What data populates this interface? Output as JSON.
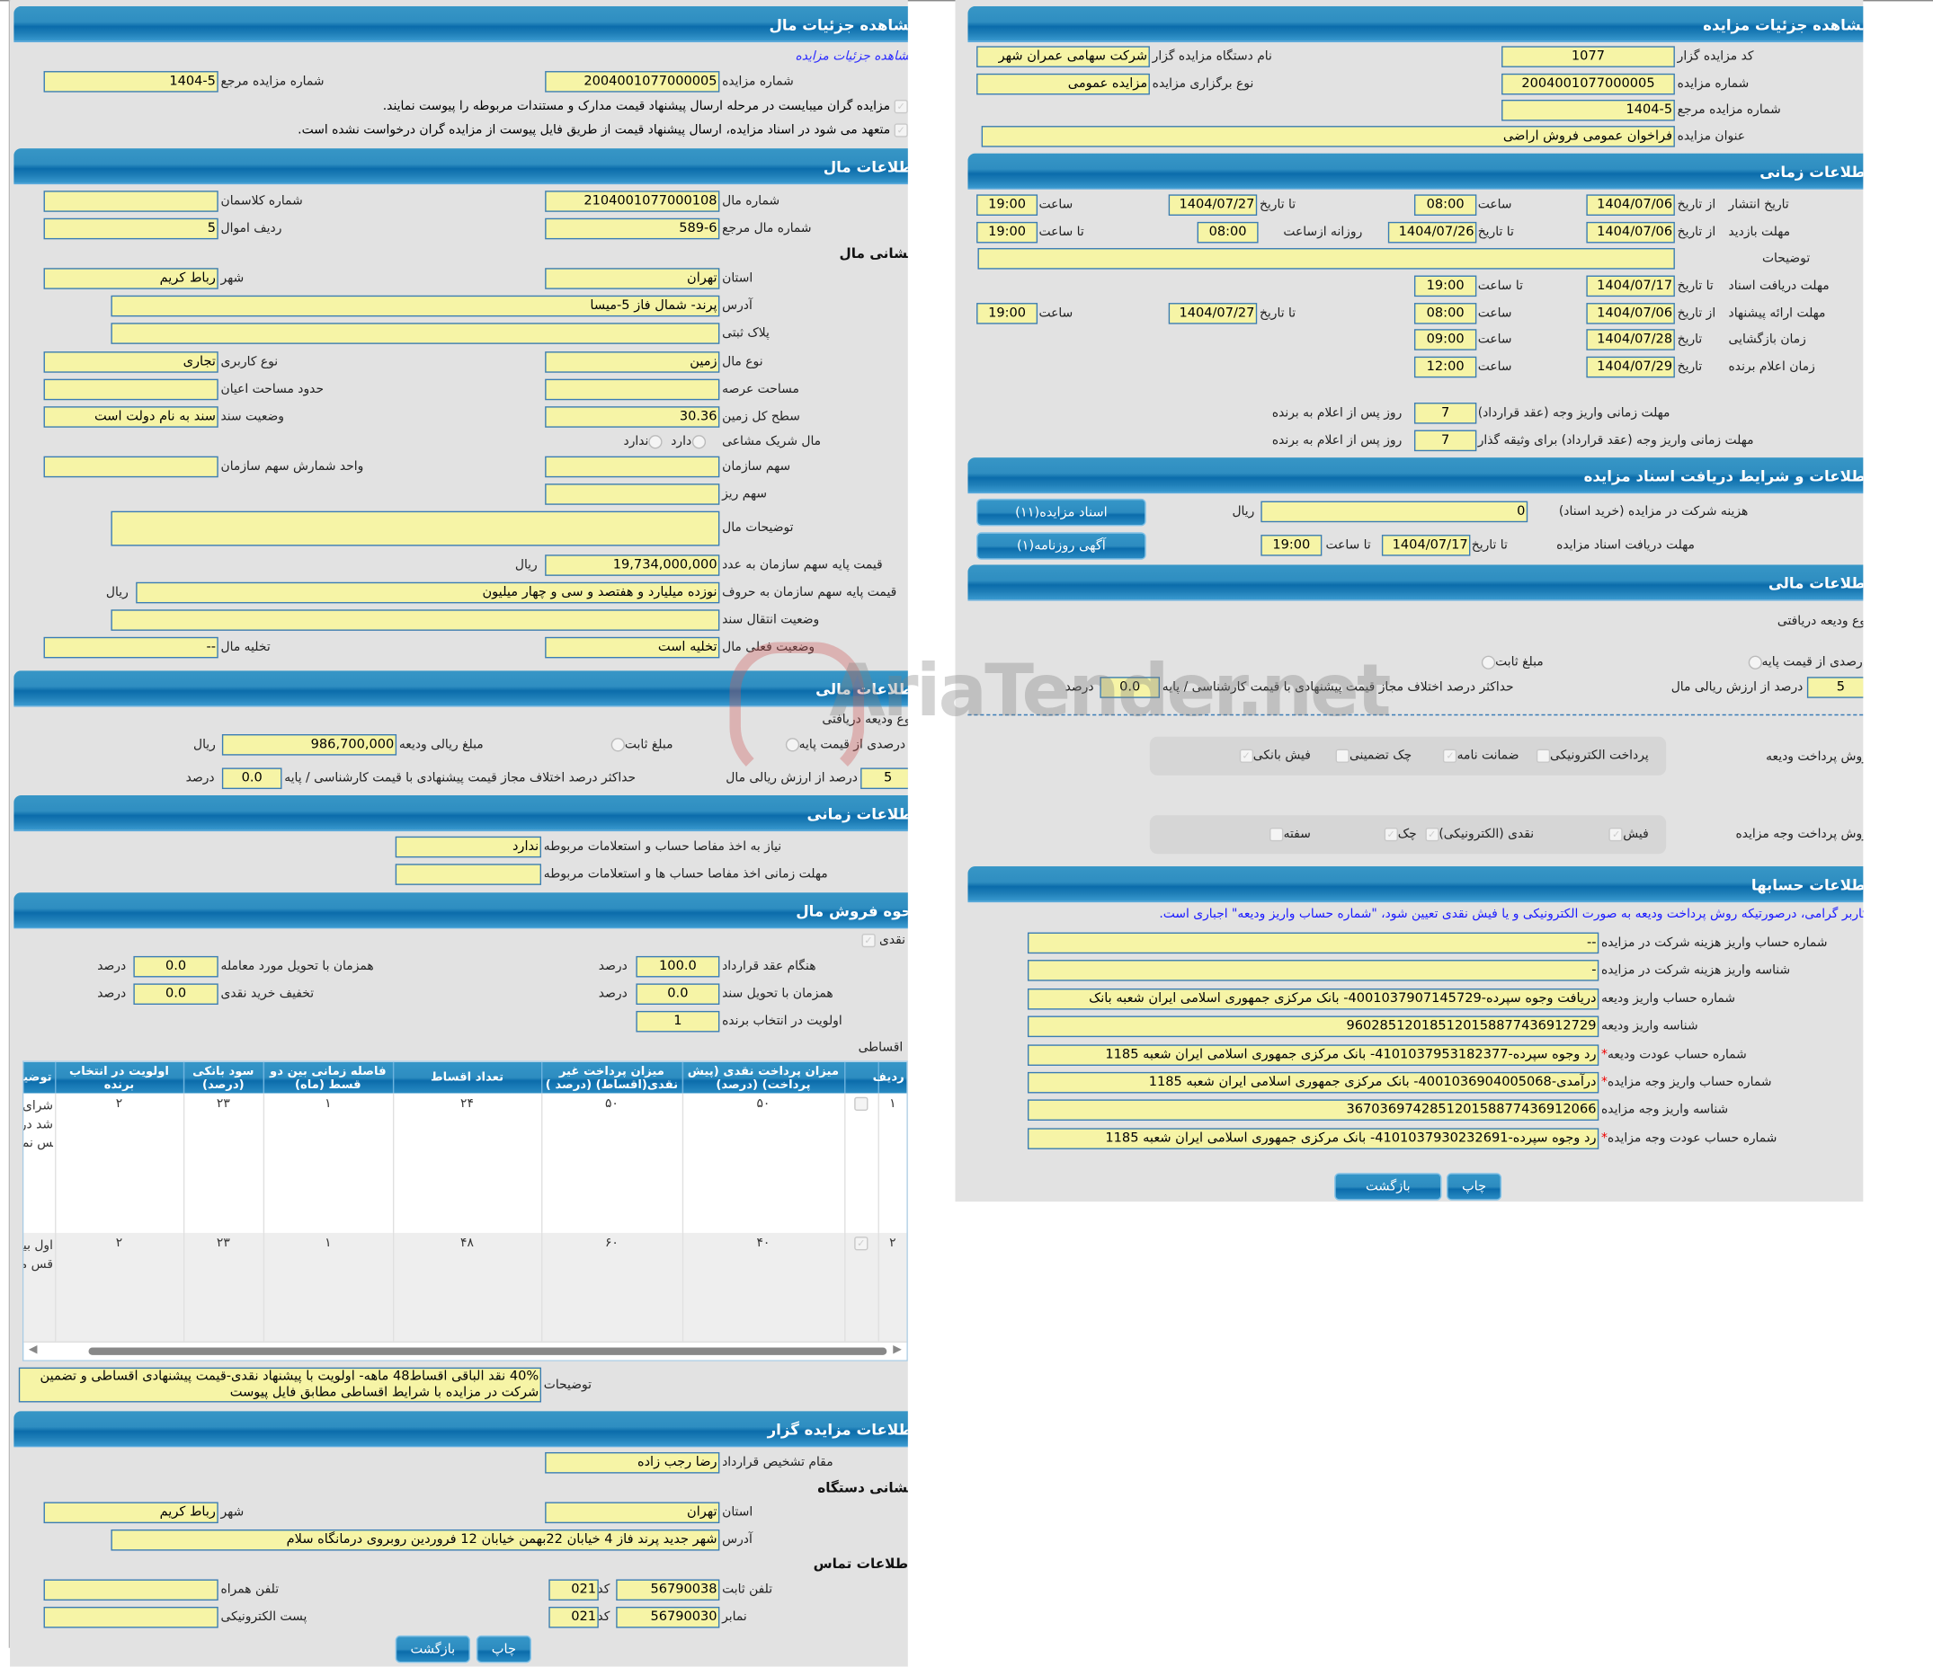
{
  "watermark": "AriaTender.net",
  "left": {
    "title": "مشاهده جزئیات مال",
    "link": "مشاهده جزئیات مزایده",
    "auction_no": {
      "label": "شماره مزایده",
      "value": "2004001077000005"
    },
    "auction_ref": {
      "label": "شماره مزایده مرجع",
      "value": "1404-5"
    },
    "check1": "مزایده گران میبایست در مرحله ارسال پیشنهاد قیمت مدارک و مستندات مربوطه را پیوست نمایند.",
    "check2": "متعهد می شود در اسناد مزایده، ارسال پیشنهاد قیمت از طریق فایل پیوست از مزایده گران درخواست نشده است.",
    "property": {
      "title": "اطلاعات مال",
      "mal_no": {
        "label": "شماره مال",
        "value": "2104001077000108"
      },
      "class_no": {
        "label": "شماره کلاسمان",
        "value": ""
      },
      "mal_ref": {
        "label": "شماره مال مرجع",
        "value": "589-6"
      },
      "row_no": {
        "label": "ردیف اموال",
        "value": "5"
      },
      "address_title": "نشانی مال",
      "province": {
        "label": "استان",
        "value": "تهران"
      },
      "city": {
        "label": "شهر",
        "value": "رباط کریم"
      },
      "address": {
        "label": "آدرس",
        "value": "پرند- شمال فاز 5-میسا"
      },
      "plate": {
        "label": "پلاک ثبتی",
        "value": ""
      },
      "type": {
        "label": "نوع مال",
        "value": "زمین"
      },
      "usage": {
        "label": "نوع کاربری",
        "value": "تجاری"
      },
      "land_area": {
        "label": "مساحت عرصه",
        "value": ""
      },
      "building_area": {
        "label": "حدود مساحت اعیان",
        "value": ""
      },
      "total_area": {
        "label": "سطح کل زمین",
        "value": "30.36"
      },
      "deed_status": {
        "label": "وضعیت سند",
        "value": "سند به نام دولت است"
      },
      "shared": {
        "label": "مال شریک مشاعی",
        "yes": "دارد",
        "no": "ندارد"
      },
      "org_share": {
        "label": "سهم سازمان",
        "value": ""
      },
      "share_unit": {
        "label": "واحد شمارش سهم سازمان",
        "value": ""
      },
      "sub_share": {
        "label": "سهم ریز",
        "value": ""
      },
      "description": {
        "label": "توضیحات مال",
        "value": ""
      },
      "base_price_num": {
        "label": "قیمت پایه سهم سازمان به عدد",
        "value": "19,734,000,000",
        "unit": "ریال"
      },
      "base_price_text": {
        "label": "قیمت پایه سهم سازمان به حروف",
        "value": "نوزده میلیارد و هفتصد و سی و چهار میلیون",
        "unit": "ریال"
      },
      "transfer": {
        "label": "وضعیت انتقال سند",
        "value": ""
      },
      "current_status": {
        "label": "وضعیت فعلی مال",
        "value": "تخلیه است"
      },
      "evacuation": {
        "label": "تخلیه مال",
        "value": "--"
      }
    },
    "financial": {
      "title": "اطلاعات مالی",
      "deposit_type": "نوع ودیعه دریافتی",
      "opt_percent": "درصدی از قیمت پایه",
      "opt_fixed": "مبلغ ثابت",
      "deposit_amount": {
        "label": "مبلغ ریالی ودیعه",
        "value": "986,700,000",
        "unit": "ریال"
      },
      "percent": {
        "label": "درصد از ارزش ریالی مال",
        "value": "5"
      },
      "max_diff": {
        "label": "حداکثر درصد اختلاف مجاز قیمت پیشنهادی با قیمت کارشناسی / پایه",
        "value": "0.0",
        "unit": "درصد"
      }
    },
    "timing": {
      "title": "اطلاعات زمانی",
      "clearance": {
        "label": "نیاز به اخذ مفاصا حساب و استعلامات مربوطه",
        "value": "ندارد"
      },
      "clearance_deadline": {
        "label": "مهلت زمانی اخذ مفاصا حساب ها و استعلامات مربوطه",
        "value": ""
      }
    },
    "sale": {
      "title": "نحوه فروش مال",
      "cash_label": "نقدی",
      "on_contract": {
        "label": "هنگام عقد قرارداد",
        "value": "100.0"
      },
      "on_delivery": {
        "label": "همزمان با تحویل مورد معامله",
        "value": "0.0"
      },
      "on_deed": {
        "label": "همزمان با تحویل سند",
        "value": "0.0"
      },
      "cash_discount": {
        "label": "تخفیف خرید نقدی",
        "value": "0.0"
      },
      "priority": {
        "label": "اولویت در انتخاب برنده",
        "value": "1"
      },
      "percent_unit": "درصد",
      "installment_label": "اقساطی",
      "columns": [
        "ردیف",
        "",
        "میزان پرداخت نقدی (پیش پرداخت) (درصد)",
        "میزان پرداخت غیر نقدی(اقساط) (درصد )",
        "تعداد اقساط",
        "فاصله زمانی بین دو قسط (ماه)",
        "سود بانکی (درصد)",
        "اولویت در انتخاب برنده",
        "توضیحات"
      ],
      "rows": [
        {
          "no": "۱",
          "checked": false,
          "cash": "۵۰",
          "noncash": "۵۰",
          "count": "۲۴",
          "interval": "۱",
          "interest": "۲۳",
          "priority": "۲",
          "desc": "شرای فقط اقسا باشد در خر برای د مس نمی"
        },
        {
          "no": "۲",
          "checked": true,
          "cash": "۴۰",
          "noncash": "۶۰",
          "count": "۴۸",
          "interval": "۱",
          "interest": "۲۳",
          "priority": "۲",
          "desc": "اول بین نقدی پیش اقس مطا پی"
        }
      ],
      "notes": {
        "label": "توضیحات",
        "value": "40% نقد الباقی اقساط48 ماهه- اولویت با پیشنهاد نقدی-قیمت پیشنهادی اقساطی و تضمین شرکت در مزایده با شرایط اقساطی مطابق فایل پیوست"
      }
    },
    "organizer": {
      "title": "اطلاعات مزایده گزار",
      "authority": {
        "label": "مقام تشخیص قرارداد",
        "value": "رضا رجب زاده"
      },
      "address_title": "نشانی دستگاه",
      "province": {
        "label": "استان",
        "value": "تهران"
      },
      "city": {
        "label": "شهر",
        "value": "رباط کریم"
      },
      "address": {
        "label": "آدرس",
        "value": "شهر جدید پرند فاز 4 خیابان 22بهمن خیابان 12 فروردین روبروی درمانگاه سلام"
      },
      "contact_title": "اطلاعات تماس",
      "phone": {
        "label": "تلفن ثابت",
        "value": "56790038",
        "code_label": "کد",
        "code": "021"
      },
      "fax": {
        "label": "نمابر",
        "value": "56790030",
        "code_label": "کد",
        "code": "021"
      },
      "mobile": {
        "label": "تلفن همراه",
        "value": ""
      },
      "email": {
        "label": "پست الکترونیکی",
        "value": ""
      }
    },
    "buttons": {
      "back": "بازگشت",
      "print": "چاپ"
    }
  },
  "right": {
    "title": "مشاهده جزئیات مزایده",
    "org_code": {
      "label": "کد مزایده گزار",
      "value": "1077"
    },
    "org_name": {
      "label": "نام دستگاه مزایده گزار",
      "value": "شرکت سهامی عمران شهر"
    },
    "auction_no": {
      "label": "شماره مزایده",
      "value": "2004001077000005"
    },
    "auction_type": {
      "label": "نوع برگزاری مزایده",
      "value": "مزایده عمومی"
    },
    "auction_ref": {
      "label": "شماره مزایده مرجع",
      "value": "1404-5"
    },
    "auction_title": {
      "label": "عنوان مزایده",
      "value": "فراخوان عمومی فروش اراضی"
    },
    "timing": {
      "title": "اطلاعات زمانی",
      "publish": {
        "label": "تاریخ انتشار",
        "from_label": "از تاریخ",
        "from": "1404/07/06",
        "time_label": "ساعت",
        "time": "08:00",
        "to_label": "تا تاریخ",
        "to": "1404/07/27",
        "to_time_label": "ساعت",
        "to_time": "19:00"
      },
      "visit": {
        "label": "مهلت بازدید",
        "from_label": "از تاریخ",
        "from": "1404/07/06",
        "to_label": "تا تاریخ",
        "to": "1404/07/26",
        "daily_label": "روزانه ازساعت",
        "daily_from": "08:00",
        "daily_to_label": "تا ساعت",
        "daily_to": "19:00"
      },
      "notes": {
        "label": "توضیحات",
        "value": ""
      },
      "docs": {
        "label": "مهلت دریافت اسناد",
        "to_label": "تا تاریخ",
        "to": "1404/07/17",
        "time_label": "تا ساعت",
        "time": "19:00"
      },
      "offer": {
        "label": "مهلت ارائه پیشنهاد",
        "from_label": "از تاریخ",
        "from": "1404/07/06",
        "time_label": "ساعت",
        "time": "08:00",
        "to_label": "تا تاریخ",
        "to": "1404/07/27",
        "to_time_label": "ساعت",
        "to_time": "19:00"
      },
      "opening": {
        "label": "زمان بازگشایی",
        "date_label": "تاریخ",
        "date": "1404/07/28",
        "time_label": "ساعت",
        "time": "09:00"
      },
      "winner": {
        "label": "زمان اعلام برنده",
        "date_label": "تاریخ",
        "date": "1404/07/29",
        "time_label": "ساعت",
        "time": "12:00"
      },
      "pay_deadline": {
        "label": "مهلت زمانی واریز وجه (عقد قرارداد)",
        "value": "7",
        "unit": "روز پس از اعلام به برنده"
      },
      "pay_deadline_collateral": {
        "label": "مهلت زمانی واریز وجه (عقد قرارداد) برای وثیقه گذار",
        "value": "7",
        "unit": "روز پس از اعلام به برنده"
      }
    },
    "docs": {
      "title": "اطلاعات و شرایط دریافت اسناد مزایده",
      "fee": {
        "label": "هزینه شرکت در مزایده (خرید اسناد)",
        "value": "0",
        "unit": "ریال"
      },
      "deadline": {
        "label": "مهلت دریافت اسناد مزایده",
        "to_label": "تا تاریخ",
        "to": "1404/07/17",
        "time_label": "تا ساعت",
        "time": "19:00"
      },
      "btn_docs": "اسناد مزایده(۱۱)",
      "btn_ad": "آگهی روزنامه(۱)"
    },
    "financial": {
      "title": "اطلاعات مالی",
      "deposit_type": "نوع ودیعه دریافتی",
      "opt_percent": "درصدی از قیمت پایه",
      "opt_fixed": "مبلغ ثابت",
      "percent": {
        "label": "درصد از ارزش ریالی مال",
        "value": "5"
      },
      "max_diff": {
        "label": "حداکثر درصد اختلاف مجاز قیمت پیشنهادی با قیمت کارشناسی / پایه",
        "value": "0.0",
        "unit": "درصد"
      },
      "deposit_methods": {
        "label": "روش پرداخت ودیعه",
        "items": [
          {
            "label": "پرداخت الکترونیکی",
            "checked": false
          },
          {
            "label": "ضمانت نامه",
            "checked": true
          },
          {
            "label": "چک تضمینی",
            "checked": false
          },
          {
            "label": "فیش بانکی",
            "checked": true
          }
        ]
      },
      "payment_methods": {
        "label": "روش پرداخت وجه مزایده",
        "items": [
          {
            "label": "فیش",
            "checked": true
          },
          {
            "label": "نقدی (الکترونیکی)",
            "checked": true
          },
          {
            "label": "چک",
            "checked": true
          },
          {
            "label": "سفته",
            "checked": false
          }
        ]
      }
    },
    "accounts": {
      "title": "اطلاعات حسابها",
      "notice": "کاربر گرامی، درصورتیکه روش پرداخت ودیعه به صورت الکترونیکی و یا فیش نقدی تعیین شود، \"شماره حساب واریز ودیعه\" اجباری است.",
      "fields": [
        {
          "label": "شماره حساب واریز هزینه شرکت در مزایده",
          "value": "--",
          "required": false
        },
        {
          "label": "شناسه واریز هزینه شرکت در مزایده",
          "value": "-",
          "required": false
        },
        {
          "label": "شماره حساب واریز ودیعه",
          "value": "دریافت وجوه سپرده-4001037907145729- بانک مرکزی جمهوری اسلامی ایران شعبه بانک",
          "required": false
        },
        {
          "label": "شناسه واریز ودیعه",
          "value": "960285120185120158877436912729",
          "required": false
        },
        {
          "label": "شماره حساب عودت ودیعه",
          "value": "رد وجوه سپرده-4101037953182377- بانک مرکزی جمهوری اسلامی ایران شعبه 1185",
          "required": true
        },
        {
          "label": "شماره حساب واریز وجه مزایده",
          "value": "درآمدی-4001036904005068- بانک مرکزی جمهوری اسلامی ایران شعبه 1185",
          "required": true
        },
        {
          "label": "شناسه واریز وجه مزایده",
          "value": "367036974285120158877436912066",
          "required": false
        },
        {
          "label": "شماره حساب عودت وجه مزایده",
          "value": "رد وجوه سپرده-4101037930232691- بانک مرکزی جمهوری اسلامی ایران شعبه 1185",
          "required": true
        }
      ],
      "required_mark": "*"
    },
    "buttons": {
      "back": "بازگشت",
      "print": "چاپ"
    }
  }
}
